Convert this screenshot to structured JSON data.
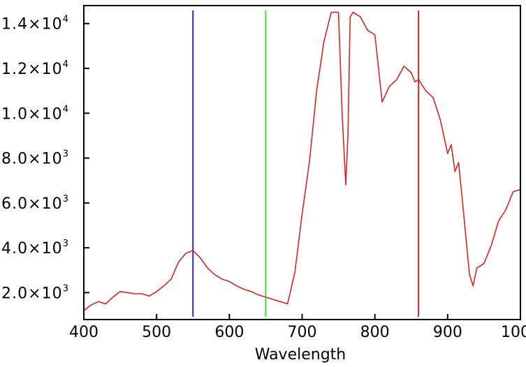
{
  "chart_data": {
    "type": "line",
    "title": "",
    "xlabel": "Wavelength",
    "ylabel": "",
    "xlim": [
      400,
      1000
    ],
    "ylim": [
      800,
      14800
    ],
    "grid": false,
    "x_ticks": [
      {
        "value": 400,
        "label": "400"
      },
      {
        "value": 500,
        "label": "500"
      },
      {
        "value": 600,
        "label": "600"
      },
      {
        "value": 700,
        "label": "700"
      },
      {
        "value": 800,
        "label": "800"
      },
      {
        "value": 900,
        "label": "900"
      },
      {
        "value": 1000,
        "label": "1000"
      }
    ],
    "y_ticks": [
      {
        "value": 2000,
        "mantissa": "2.0×10",
        "exp": "3"
      },
      {
        "value": 4000,
        "mantissa": "4.0×10",
        "exp": "3"
      },
      {
        "value": 6000,
        "mantissa": "6.0×10",
        "exp": "3"
      },
      {
        "value": 8000,
        "mantissa": "8.0×10",
        "exp": "3"
      },
      {
        "value": 10000,
        "mantissa": "1.0×10",
        "exp": "4"
      },
      {
        "value": 12000,
        "mantissa": "1.2×10",
        "exp": "4"
      },
      {
        "value": 14000,
        "mantissa": "1.4×10",
        "exp": "4"
      }
    ],
    "series": [
      {
        "color": "#dd2222",
        "x": [
          400,
          410,
          420,
          430,
          440,
          450,
          460,
          470,
          480,
          490,
          500,
          510,
          520,
          530,
          540,
          550,
          560,
          570,
          580,
          590,
          600,
          610,
          620,
          630,
          640,
          650,
          660,
          670,
          680,
          690,
          700,
          710,
          720,
          730,
          740,
          750,
          755,
          760,
          763,
          766,
          770,
          775,
          780,
          790,
          800,
          810,
          820,
          830,
          840,
          850,
          855,
          860,
          870,
          880,
          890,
          900,
          905,
          910,
          915,
          920,
          925,
          930,
          935,
          940,
          945,
          950,
          960,
          970,
          980,
          990,
          1000
        ],
        "y": [
          1200,
          1450,
          1600,
          1500,
          1800,
          2050,
          2000,
          1950,
          1950,
          1850,
          2050,
          2300,
          2600,
          3350,
          3750,
          3880,
          3550,
          3100,
          2800,
          2600,
          2500,
          2300,
          2150,
          2050,
          1900,
          1800,
          1700,
          1600,
          1500,
          2900,
          5500,
          7800,
          11000,
          13200,
          14500,
          14500,
          10000,
          6800,
          9000,
          14300,
          14500,
          14400,
          14300,
          13700,
          13500,
          10500,
          11200,
          11500,
          12100,
          11800,
          11400,
          11500,
          11000,
          10700,
          9700,
          8200,
          8600,
          7400,
          7800,
          6200,
          4500,
          2800,
          2300,
          3100,
          3200,
          3300,
          4100,
          5200,
          5700,
          6500,
          6600
        ]
      }
    ],
    "markers": [
      {
        "x": 550,
        "color": "#2a2ad0"
      },
      {
        "x": 650,
        "color": "#44dd33"
      },
      {
        "x": 860,
        "color": "#b82a2a"
      }
    ]
  }
}
